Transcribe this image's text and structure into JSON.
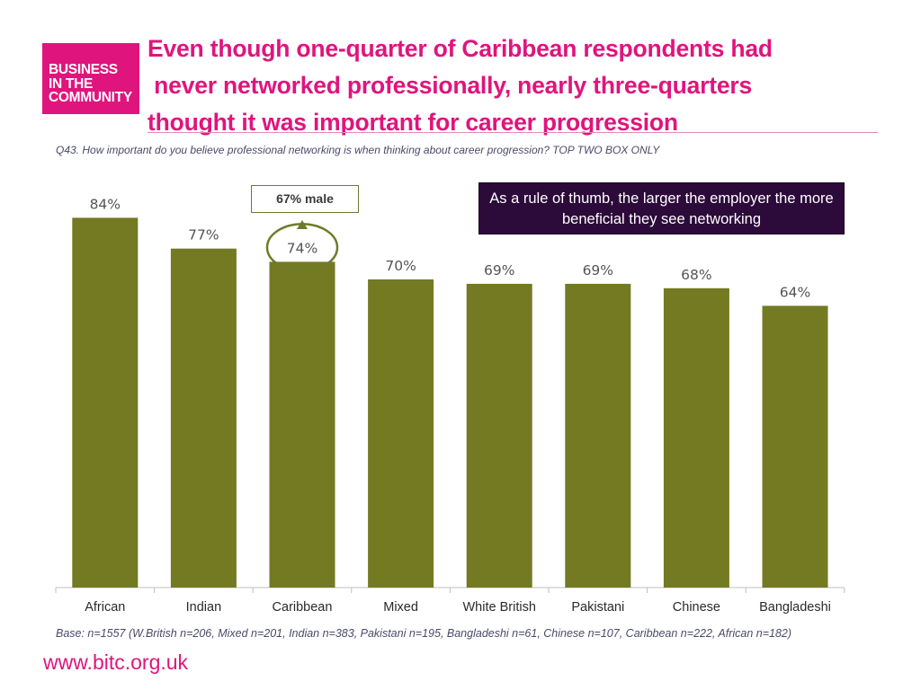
{
  "logo": {
    "lines": [
      "BUSINESS",
      "IN THE",
      "COMMUNITY"
    ]
  },
  "title": {
    "lines": [
      "Even though one-quarter of Caribbean respondents had",
      " never networked professionally, nearly three-quarters",
      "thought it was important for career progression"
    ]
  },
  "question": "Q43. How important do you believe professional networking is when thinking about career progression? TOP TWO BOX ONLY",
  "callout": "As a rule of thumb, the larger the employer the more beneficial they see networking",
  "annotation": {
    "text": "67% male",
    "target_category": "Caribbean"
  },
  "chart_data": {
    "type": "bar",
    "categories": [
      "African",
      "Indian",
      "Caribbean",
      "Mixed",
      "White British",
      "Pakistani",
      "Chinese",
      "Bangladeshi"
    ],
    "values": [
      84,
      77,
      74,
      70,
      69,
      69,
      68,
      64
    ],
    "data_labels": [
      "84%",
      "77%",
      "74%",
      "70%",
      "69%",
      "69%",
      "68%",
      "64%"
    ],
    "highlight_category": "Caribbean",
    "ylim": [
      0,
      100
    ],
    "grid": false,
    "colors": {
      "bar": "#737a22",
      "highlight": "#6f7a2a"
    }
  },
  "base_note": "Base: n=1557 (W.British n=206, Mixed n=201, Indian n=383, Pakistani n=195, Bangladeshi n=61, Chinese n=107, Caribbean n=222, African n=182)",
  "url": "www.bitc.org.uk"
}
